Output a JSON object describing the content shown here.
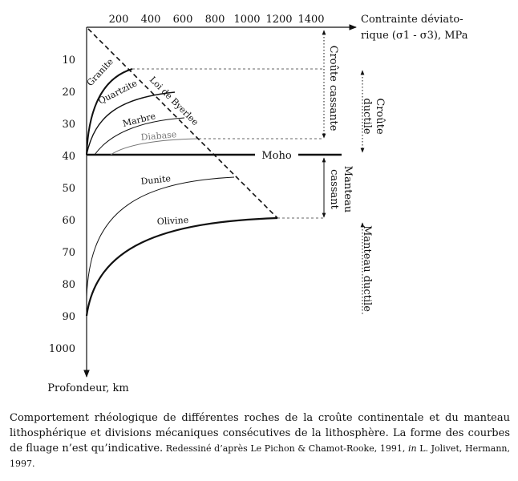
{
  "axes": {
    "x_title_line1": "Contrainte déviato-",
    "x_title_line2": "rique (σ1 - σ3), MPa",
    "y_title": "Profondeur, km",
    "x_ticks": [
      "200",
      "400",
      "600",
      "800",
      "1000",
      "1200",
      "1400"
    ],
    "y_ticks": [
      "10",
      "20",
      "30",
      "40",
      "50",
      "60",
      "70",
      "80",
      "90",
      "1000"
    ]
  },
  "curves": {
    "granite": "Granite",
    "quartzite": "Quartzite",
    "marbre": "Marbre",
    "diabase": "Diabase",
    "dunite": "Dunite",
    "olivine": "Olivine",
    "byerlee": "Loi de Byerlee"
  },
  "boundary": {
    "moho": "Moho"
  },
  "zones": {
    "croute_cassante": "Croûte cassante",
    "croute_ductile_1": "Croûte",
    "croute_ductile_2": "ductile",
    "manteau_cassant_1": "Manteau",
    "manteau_cassant_2": "cassant",
    "manteau_ductile": "Manteau ductile"
  },
  "caption": {
    "main": "Comportement rhéologique de différentes roches de la croûte continentale et du manteau lithosphérique et divisions mécaniques consécutives de la lithosphère. La forme des courbes de fluage n’est qu’indicative.",
    "credit_a": " Redessiné d’après Le Pichon & Chamot-Rooke, 1991, ",
    "credit_in": "in",
    "credit_b": " L. Jolivet, Hermann, 1997."
  }
}
